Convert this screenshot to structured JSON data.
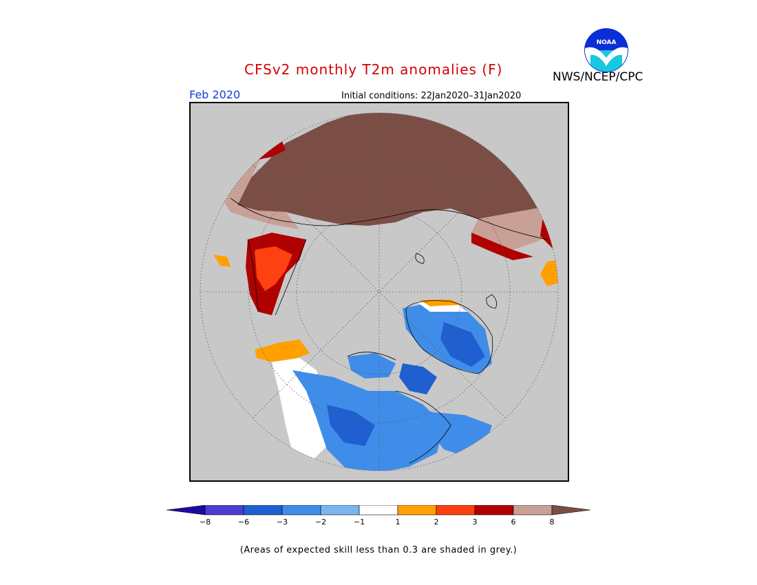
{
  "header": {
    "title": "CFSv2 monthly T2m anomalies (F)",
    "organization": "NWS/NCEP/CPC",
    "logo_text": "NOAA",
    "period": "Feb 2020",
    "initial_conditions": "Initial conditions: 22Jan2020–31Jan2020"
  },
  "map": {
    "projection": "north-polar-stereographic",
    "background_color": "#c8c8c8",
    "graticule": "dotted"
  },
  "legend": {
    "tick_labels": [
      "-8",
      "-6",
      "-3",
      "-2",
      "-1",
      "1",
      "2",
      "3",
      "6",
      "8"
    ],
    "colors": [
      "#1c0aa0",
      "#4e3dd0",
      "#1f5fcf",
      "#3f8de8",
      "#7ab5f0",
      "#ffffff",
      "#ffa000",
      "#ff4010",
      "#b00000",
      "#c9a096",
      "#7b4e45"
    ],
    "extend": "both"
  },
  "footnote": "(Areas of expected skill less than 0.3 are shaded in grey.)"
}
